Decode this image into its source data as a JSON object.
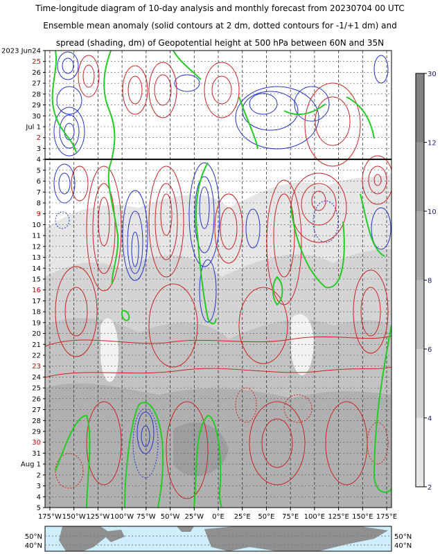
{
  "title_lines": [
    "Time-longitude diagram of 10-day analysis and monthly forecast from 20230704 00 UTC",
    "Ensemble mean anomaly (solid contours at 2 dm, dotted contours for -1/+1 dm) and",
    "spread (shading, dm) of Geopotential height at 500 hPa between 60N and 35N"
  ],
  "chart_data": {
    "type": "heatmap",
    "x_axis": {
      "range": [
        -180,
        180
      ],
      "tick_values": [
        -175,
        -150,
        -125,
        -100,
        -75,
        -50,
        -25,
        0,
        25,
        50,
        75,
        100,
        125,
        150,
        175
      ],
      "tick_labels": [
        "175°W",
        "150°W",
        "125°W",
        "100°W",
        "75°W",
        "50°W",
        "25°W",
        "0°E",
        "25°E",
        "50°E",
        "75°E",
        "100°E",
        "125°E",
        "150°E",
        "175°E"
      ]
    },
    "y_axis": {
      "direction": "time increasing downward",
      "start_date": "2023-06-24",
      "end_date": "2023-08-05",
      "labels": [
        {
          "day": 0,
          "text": "2023 Jun24",
          "color": "#000000"
        },
        {
          "day": 1,
          "text": "25",
          "color": "#cc0000"
        },
        {
          "day": 2,
          "text": "26",
          "color": "#000000"
        },
        {
          "day": 3,
          "text": "27",
          "color": "#000000"
        },
        {
          "day": 4,
          "text": "28",
          "color": "#000000"
        },
        {
          "day": 5,
          "text": "29",
          "color": "#000000"
        },
        {
          "day": 6,
          "text": "30",
          "color": "#000000"
        },
        {
          "day": 7,
          "text": "Jul  1",
          "color": "#000000"
        },
        {
          "day": 8,
          "text": "2",
          "color": "#cc0000"
        },
        {
          "day": 9,
          "text": "3",
          "color": "#000000"
        },
        {
          "day": 10,
          "text": "4",
          "color": "#000000"
        },
        {
          "day": 11,
          "text": "5",
          "color": "#000000"
        },
        {
          "day": 12,
          "text": "6",
          "color": "#000000"
        },
        {
          "day": 13,
          "text": "7",
          "color": "#000000"
        },
        {
          "day": 14,
          "text": "8",
          "color": "#000000"
        },
        {
          "day": 15,
          "text": "9",
          "color": "#cc0000"
        },
        {
          "day": 16,
          "text": "10",
          "color": "#000000"
        },
        {
          "day": 17,
          "text": "11",
          "color": "#000000"
        },
        {
          "day": 18,
          "text": "12",
          "color": "#000000"
        },
        {
          "day": 19,
          "text": "13",
          "color": "#000000"
        },
        {
          "day": 20,
          "text": "14",
          "color": "#000000"
        },
        {
          "day": 21,
          "text": "15",
          "color": "#000000"
        },
        {
          "day": 22,
          "text": "16",
          "color": "#cc0000"
        },
        {
          "day": 23,
          "text": "17",
          "color": "#000000"
        },
        {
          "day": 24,
          "text": "18",
          "color": "#000000"
        },
        {
          "day": 25,
          "text": "19",
          "color": "#000000"
        },
        {
          "day": 26,
          "text": "20",
          "color": "#000000"
        },
        {
          "day": 27,
          "text": "21",
          "color": "#000000"
        },
        {
          "day": 28,
          "text": "22",
          "color": "#000000"
        },
        {
          "day": 29,
          "text": "23",
          "color": "#cc0000"
        },
        {
          "day": 30,
          "text": "24",
          "color": "#000000"
        },
        {
          "day": 31,
          "text": "25",
          "color": "#000000"
        },
        {
          "day": 32,
          "text": "26",
          "color": "#000000"
        },
        {
          "day": 33,
          "text": "27",
          "color": "#000000"
        },
        {
          "day": 34,
          "text": "28",
          "color": "#000000"
        },
        {
          "day": 35,
          "text": "29",
          "color": "#000000"
        },
        {
          "day": 36,
          "text": "30",
          "color": "#cc0000"
        },
        {
          "day": 37,
          "text": "31",
          "color": "#000000"
        },
        {
          "day": 38,
          "text": "Aug  1",
          "color": "#000000"
        },
        {
          "day": 39,
          "text": "2",
          "color": "#000000"
        },
        {
          "day": 40,
          "text": "3",
          "color": "#000000"
        },
        {
          "day": 41,
          "text": "4",
          "color": "#000000"
        },
        {
          "day": 42,
          "text": "5",
          "color": "#000000"
        }
      ],
      "forecast_start_day": 10
    },
    "colorbar": {
      "labels": [
        {
          "value": 2,
          "text": "2"
        },
        {
          "value": 4,
          "text": "4"
        },
        {
          "value": 6,
          "text": "6"
        },
        {
          "value": 8,
          "text": "8"
        },
        {
          "value": 10,
          "text": "10"
        },
        {
          "value": 12,
          "text": "12"
        },
        {
          "value": 30,
          "text": "30"
        }
      ],
      "levels": [
        {
          "from": 2,
          "to": 4,
          "color": "#e6e6e6"
        },
        {
          "from": 4,
          "to": 6,
          "color": "#d2d2d2"
        },
        {
          "from": 6,
          "to": 8,
          "color": "#bebebe"
        },
        {
          "from": 8,
          "to": 10,
          "color": "#aaaaaa"
        },
        {
          "from": 10,
          "to": 12,
          "color": "#969696"
        },
        {
          "from": 12,
          "to": 30,
          "color": "#828282"
        }
      ]
    },
    "map_strip": {
      "lat_labels": [
        "50°N",
        "40°N"
      ]
    },
    "series_colors": {
      "positive_anomaly": "#cc2222",
      "negative_anomaly": "#2233cc",
      "zero_contour": "#22cc22",
      "forecast_line": "#000000"
    }
  }
}
